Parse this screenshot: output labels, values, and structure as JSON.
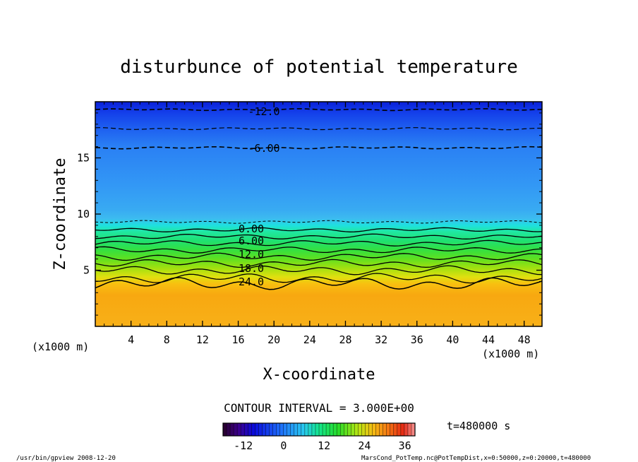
{
  "chart_data": {
    "type": "heatmap",
    "title": "disturbunce of potential temperature",
    "xlabel": "X-coordinate",
    "ylabel": "Z-coordinate",
    "x_unit_left": "(x1000 m)",
    "x_unit_right": "(x1000 m)",
    "xlim": [
      0,
      50
    ],
    "ylim": [
      0,
      20
    ],
    "x_ticks": [
      "4",
      "8",
      "12",
      "16",
      "20",
      "24",
      "28",
      "32",
      "36",
      "40",
      "44",
      "48"
    ],
    "y_ticks": [
      "5",
      "10",
      "15"
    ],
    "contour_labels": [
      "-12.0",
      "-6.00",
      "0.00",
      "6.00",
      "12.0",
      "18.0",
      "24.0"
    ],
    "contour_interval": "CONTOUR INTERVAL = 3.000E+00",
    "time_label": "t=480000 s",
    "colorbar": {
      "min": -18,
      "max": 39,
      "tick_labels": [
        "-12",
        "0",
        "12",
        "24",
        "36"
      ]
    },
    "footer_left": "/usr/bin/gpview   2008-12-20",
    "footer_right": "MarsCond_PotTemp.nc@PotTempDist,x=0:50000,z=0:20000,t=480000"
  }
}
